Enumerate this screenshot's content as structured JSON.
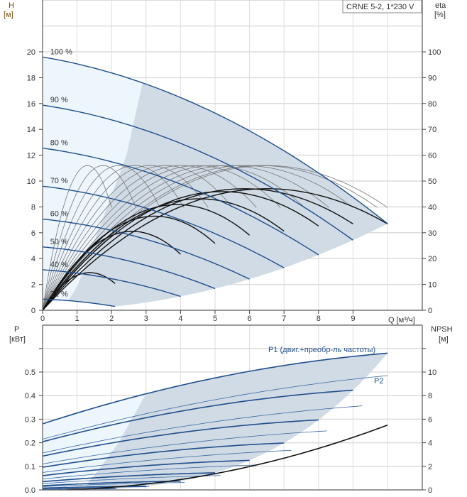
{
  "chart_data": [
    {
      "type": "line",
      "title": "CRNE 5-2, 1*230 V",
      "xlabel": "Q [м³/ч]",
      "ylabel": "H",
      "ylabel_unit": "[м]",
      "y2label": "eta",
      "y2label_unit": "[%]",
      "xlim": [
        0,
        11
      ],
      "ylim": [
        0,
        24
      ],
      "y2lim": [
        0,
        120
      ],
      "xticks": [
        "0",
        "1",
        "2",
        "3",
        "4",
        "5",
        "6",
        "7",
        "8",
        "9"
      ],
      "yticks": [
        "0",
        "2",
        "4",
        "6",
        "8",
        "10",
        "12",
        "14",
        "16",
        "18",
        "20"
      ],
      "y2ticks": [
        "0",
        "10",
        "20",
        "30",
        "40",
        "50",
        "60",
        "70",
        "80",
        "90",
        "100"
      ],
      "grid": true,
      "head_model": {
        "H0": 19.6,
        "b": 0.447,
        "c": 0.0843,
        "qmax_full_speed": 10
      },
      "series": [
        {
          "name": "100 %",
          "speed": 1.0
        },
        {
          "name": "90 %",
          "speed": 0.9
        },
        {
          "name": "80 %",
          "speed": 0.8
        },
        {
          "name": "70 %",
          "speed": 0.7
        },
        {
          "name": "60 %",
          "speed": 0.6
        },
        {
          "name": "50 %",
          "speed": 0.5
        },
        {
          "name": "40 %",
          "speed": 0.4
        },
        {
          "name": "21 %",
          "speed": 0.21
        }
      ],
      "efficiency": {
        "hydraulic_peak_percent": 56,
        "peak_q_full_speed": 6.5,
        "hydraulic_speeds": [
          0.2,
          0.27,
          0.34,
          0.41,
          0.48,
          0.55,
          0.62,
          0.69,
          0.76,
          0.83,
          0.9,
          0.97,
          1.0
        ],
        "total_speeds": [
          1.0,
          0.9,
          0.8,
          0.7,
          0.6,
          0.5,
          0.4,
          0.21
        ],
        "total_factors": [
          0.84,
          0.84,
          0.82,
          0.77,
          0.73,
          0.65,
          0.545,
          0.26
        ]
      }
    },
    {
      "type": "line",
      "xlabel": "Q [м³/ч]",
      "ylabel": "P",
      "ylabel_unit": "[кВт]",
      "y2label": "NPSH",
      "y2label_unit": "[м]",
      "xlim": [
        0,
        11
      ],
      "ylim": [
        0,
        0.7
      ],
      "y2lim": [
        0,
        14
      ],
      "yticks": [
        "0.0",
        "0.1",
        "0.2",
        "0.3",
        "0.4",
        "0.5"
      ],
      "y2ticks": [
        "0",
        "2",
        "4",
        "6",
        "8",
        "10"
      ],
      "grid": true,
      "p1_label": "P1 (двиг.+преобр-ль частоты)",
      "p2_label": "P2",
      "p1_model": [
        0.28,
        0.048,
        -0.0018
      ],
      "p2_model": [
        0.215,
        0.04,
        -0.0013
      ],
      "speeds": [
        1.0,
        0.9,
        0.8,
        0.7,
        0.6,
        0.5,
        0.4,
        0.3,
        0.21
      ],
      "npsh_model": {
        "coef": 0.055,
        "q_start": 0.7,
        "q_end": 10
      }
    }
  ]
}
